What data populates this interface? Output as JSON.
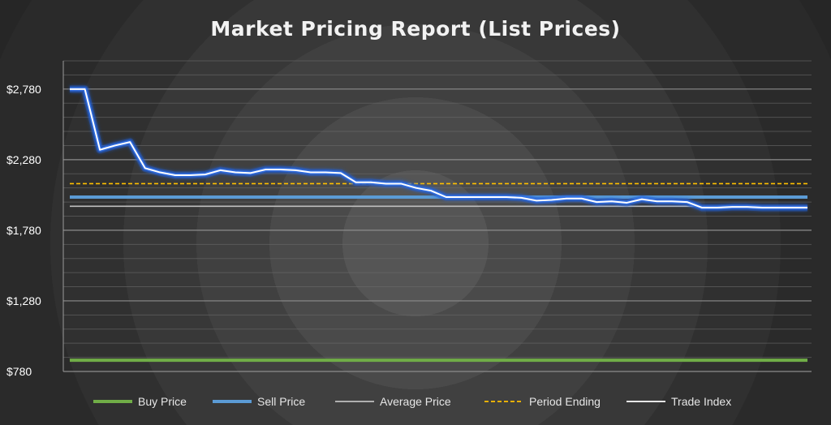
{
  "chart_data": {
    "type": "line",
    "title": "Market Pricing Report (List Prices)",
    "ylim": [
      780,
      2980
    ],
    "y_ticks": [
      "$780",
      "$1,280",
      "$1,780",
      "$2,280",
      "$2,780"
    ],
    "y_tick_values": [
      780,
      1280,
      1780,
      2280,
      2780
    ],
    "grid": true,
    "legend_position": "bottom",
    "x_count": 50,
    "series": [
      {
        "name": "Buy Price",
        "color": "#70ad47",
        "style": "solid-thick",
        "values": [
          860,
          860
        ]
      },
      {
        "name": "Sell Price",
        "color": "#5b9bd5",
        "style": "solid-thick",
        "values": [
          2015,
          2015
        ]
      },
      {
        "name": "Average Price",
        "color": "#bfbfbf",
        "style": "solid-thin",
        "values": [
          1950,
          1950
        ]
      },
      {
        "name": "Period Ending",
        "color": "#ffc000",
        "style": "dashed",
        "values": [
          2110,
          2110
        ]
      },
      {
        "name": "Trade Index",
        "color": "#ffffff",
        "style": "glow",
        "values": [
          2780,
          2780,
          2350,
          2380,
          2405,
          2220,
          2190,
          2170,
          2170,
          2175,
          2205,
          2190,
          2185,
          2210,
          2210,
          2205,
          2190,
          2190,
          2185,
          2120,
          2120,
          2110,
          2110,
          2080,
          2060,
          2015,
          2015,
          2015,
          2015,
          2015,
          2010,
          1990,
          1995,
          2005,
          2005,
          1980,
          1985,
          1975,
          2000,
          1985,
          1985,
          1980,
          1940,
          1940,
          1945,
          1945,
          1940,
          1940,
          1940,
          1940
        ]
      }
    ]
  }
}
